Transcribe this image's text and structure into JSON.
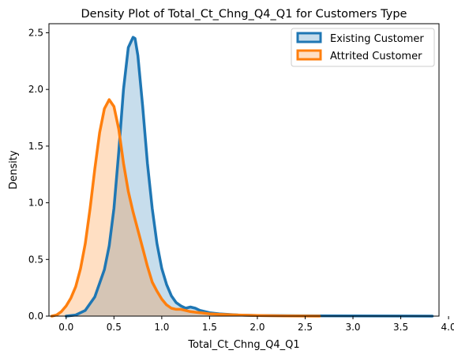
{
  "chart_data": {
    "type": "area",
    "title": "Density Plot of Total_Ct_Chng_Q4_Q1 for Customers Type",
    "xlabel": "Total_Ct_Chng_Q4_Q1",
    "ylabel": "Density",
    "xlim": [
      -0.18,
      3.9
    ],
    "ylim": [
      0,
      2.58
    ],
    "xticks": [
      "0.0",
      "0.5",
      "1.0",
      "1.5",
      "2.0",
      "2.5",
      "3.0",
      "3.5",
      "4.0"
    ],
    "yticks": [
      "0.0",
      "0.5",
      "1.0",
      "1.5",
      "2.0",
      "2.5"
    ],
    "grid": false,
    "legend_position": "top-right",
    "series": [
      {
        "name": "Existing Customer",
        "color": "#1f77b4",
        "x": [
          0.0,
          0.1,
          0.2,
          0.3,
          0.4,
          0.45,
          0.5,
          0.55,
          0.6,
          0.65,
          0.7,
          0.72,
          0.75,
          0.8,
          0.85,
          0.9,
          0.95,
          1.0,
          1.05,
          1.1,
          1.15,
          1.2,
          1.25,
          1.3,
          1.35,
          1.4,
          1.5,
          1.6,
          1.8,
          2.0,
          2.5,
          3.0,
          3.5,
          3.83
        ],
        "y": [
          0.0,
          0.01,
          0.05,
          0.17,
          0.41,
          0.62,
          0.95,
          1.45,
          2.0,
          2.37,
          2.46,
          2.45,
          2.3,
          1.85,
          1.35,
          0.95,
          0.64,
          0.42,
          0.28,
          0.18,
          0.12,
          0.09,
          0.07,
          0.08,
          0.07,
          0.05,
          0.03,
          0.02,
          0.01,
          0.005,
          0.003,
          0.002,
          0.001,
          0.0
        ]
      },
      {
        "name": "Attrited Customer",
        "color": "#ff7f0e",
        "x": [
          -0.15,
          -0.1,
          -0.05,
          0.0,
          0.05,
          0.1,
          0.15,
          0.2,
          0.25,
          0.3,
          0.35,
          0.4,
          0.45,
          0.5,
          0.55,
          0.6,
          0.65,
          0.7,
          0.75,
          0.8,
          0.85,
          0.9,
          0.95,
          1.0,
          1.05,
          1.1,
          1.15,
          1.2,
          1.3,
          1.4,
          1.5,
          1.6,
          1.8,
          2.0,
          2.3,
          2.65
        ],
        "y": [
          0.0,
          0.01,
          0.04,
          0.09,
          0.16,
          0.26,
          0.42,
          0.64,
          0.95,
          1.3,
          1.62,
          1.83,
          1.91,
          1.85,
          1.65,
          1.35,
          1.1,
          0.92,
          0.76,
          0.6,
          0.44,
          0.3,
          0.22,
          0.15,
          0.1,
          0.07,
          0.06,
          0.06,
          0.04,
          0.03,
          0.02,
          0.015,
          0.01,
          0.005,
          0.002,
          0.0
        ]
      }
    ]
  }
}
